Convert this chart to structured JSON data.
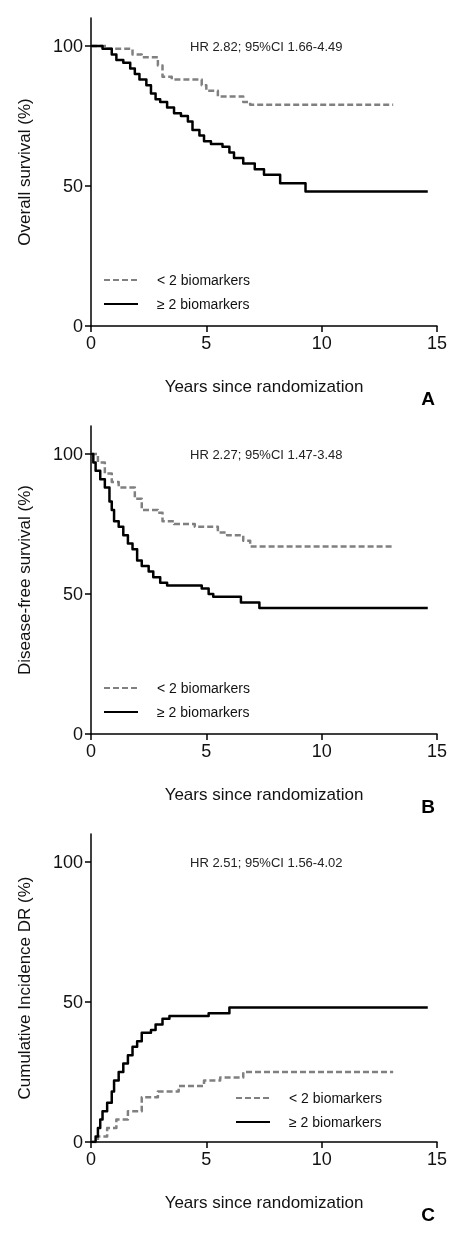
{
  "chart_data": [
    {
      "type": "step",
      "ylabel": "Overall survival (%)",
      "xlabel": "Years since randomization",
      "xlim": [
        0,
        15
      ],
      "xticks": [
        0,
        5,
        10,
        15
      ],
      "ylim": [
        0,
        110
      ],
      "yticks": [
        0,
        50,
        100
      ],
      "grid": false,
      "legend": "bottom left",
      "marker": "none",
      "annotations": [
        "HR 2.82; 95%CI 1.66-4.49",
        "A"
      ],
      "series": [
        {
          "name": "< 2 biomarkers",
          "color": "#808080",
          "line_style": "dashed",
          "x": [
            0,
            0.7,
            1.8,
            2.2,
            2.9,
            3.1,
            3.5,
            4.8,
            5.0,
            5.5,
            6.6,
            6.9,
            13.1
          ],
          "values": [
            100,
            99,
            97,
            96,
            93,
            89,
            88,
            86,
            84,
            82,
            80,
            79,
            79
          ]
        },
        {
          "name": "≥ 2 biomarkers",
          "color": "#000000",
          "line_style": "solid",
          "x": [
            0,
            0.5,
            0.9,
            1.1,
            1.4,
            1.7,
            1.9,
            2.1,
            2.4,
            2.6,
            2.8,
            3.0,
            3.3,
            3.6,
            3.9,
            4.2,
            4.4,
            4.7,
            4.9,
            5.2,
            5.7,
            6.0,
            6.2,
            6.6,
            7.1,
            7.5,
            8.2,
            9.3,
            14.6
          ],
          "values": [
            100,
            99,
            97,
            95,
            94,
            92,
            90,
            88,
            86,
            83,
            81,
            80,
            78,
            76,
            75,
            73,
            70,
            68,
            66,
            65,
            64,
            62,
            60,
            58,
            56,
            54,
            51,
            48,
            48
          ]
        }
      ]
    },
    {
      "type": "step",
      "ylabel": "Disease-free survival (%)",
      "xlabel": "Years since randomization",
      "xlim": [
        0,
        15
      ],
      "xticks": [
        0,
        5,
        10,
        15
      ],
      "ylim": [
        0,
        110
      ],
      "yticks": [
        0,
        50,
        100
      ],
      "grid": false,
      "legend": "bottom left",
      "marker": "none",
      "annotations": [
        "HR 2.27; 95%CI 1.47-3.48",
        "B"
      ],
      "series": [
        {
          "name": "< 2 biomarkers",
          "color": "#808080",
          "line_style": "dashed",
          "x": [
            0,
            0.3,
            0.6,
            0.9,
            1.2,
            1.9,
            2.2,
            2.9,
            3.1,
            3.6,
            4.5,
            5.5,
            5.9,
            6.6,
            6.9,
            13.1
          ],
          "values": [
            100,
            97,
            93,
            90,
            88,
            84,
            80,
            79,
            76,
            75,
            74,
            72,
            71,
            69,
            67,
            67
          ]
        },
        {
          "name": "≥ 2 biomarkers",
          "color": "#000000",
          "line_style": "solid",
          "x": [
            0,
            0.1,
            0.2,
            0.4,
            0.6,
            0.8,
            0.9,
            1.0,
            1.2,
            1.4,
            1.6,
            1.8,
            2.0,
            2.2,
            2.5,
            2.7,
            3.0,
            3.3,
            4.8,
            5.1,
            5.3,
            6.5,
            7.3,
            14.6
          ],
          "values": [
            100,
            97,
            94,
            91,
            88,
            83,
            80,
            76,
            74,
            71,
            68,
            66,
            62,
            60,
            58,
            56,
            54,
            53,
            52,
            50,
            49,
            47,
            45,
            45
          ]
        }
      ]
    },
    {
      "type": "step",
      "ylabel": "Cumulative Incidence DR (%)",
      "xlabel": "Years since randomization",
      "xlim": [
        0,
        15
      ],
      "xticks": [
        0,
        5,
        10,
        15
      ],
      "ylim": [
        0,
        110
      ],
      "yticks": [
        0,
        50,
        100
      ],
      "grid": false,
      "legend": "bottom",
      "marker": "none",
      "annotations": [
        "HR 2.51; 95%CI 1.56-4.02",
        "C"
      ],
      "series": [
        {
          "name": "< 2 biomarkers",
          "color": "#808080",
          "line_style": "dashed",
          "x": [
            0,
            0.3,
            0.7,
            1.1,
            1.6,
            2.2,
            2.9,
            3.8,
            4.9,
            5.6,
            6.6,
            13.1
          ],
          "values": [
            0,
            2,
            5,
            8,
            11,
            16,
            18,
            20,
            22,
            23,
            25,
            25
          ]
        },
        {
          "name": "≥ 2 biomarkers",
          "color": "#000000",
          "line_style": "solid",
          "x": [
            0,
            0.2,
            0.3,
            0.4,
            0.5,
            0.7,
            0.9,
            1.0,
            1.2,
            1.4,
            1.6,
            1.8,
            2.0,
            2.2,
            2.6,
            2.8,
            3.1,
            3.4,
            5.1,
            6.0,
            14.6
          ],
          "values": [
            0,
            2,
            5,
            8,
            11,
            14,
            18,
            22,
            25,
            28,
            31,
            34,
            36,
            39,
            40,
            42,
            44,
            45,
            46,
            48,
            48
          ]
        }
      ]
    }
  ]
}
